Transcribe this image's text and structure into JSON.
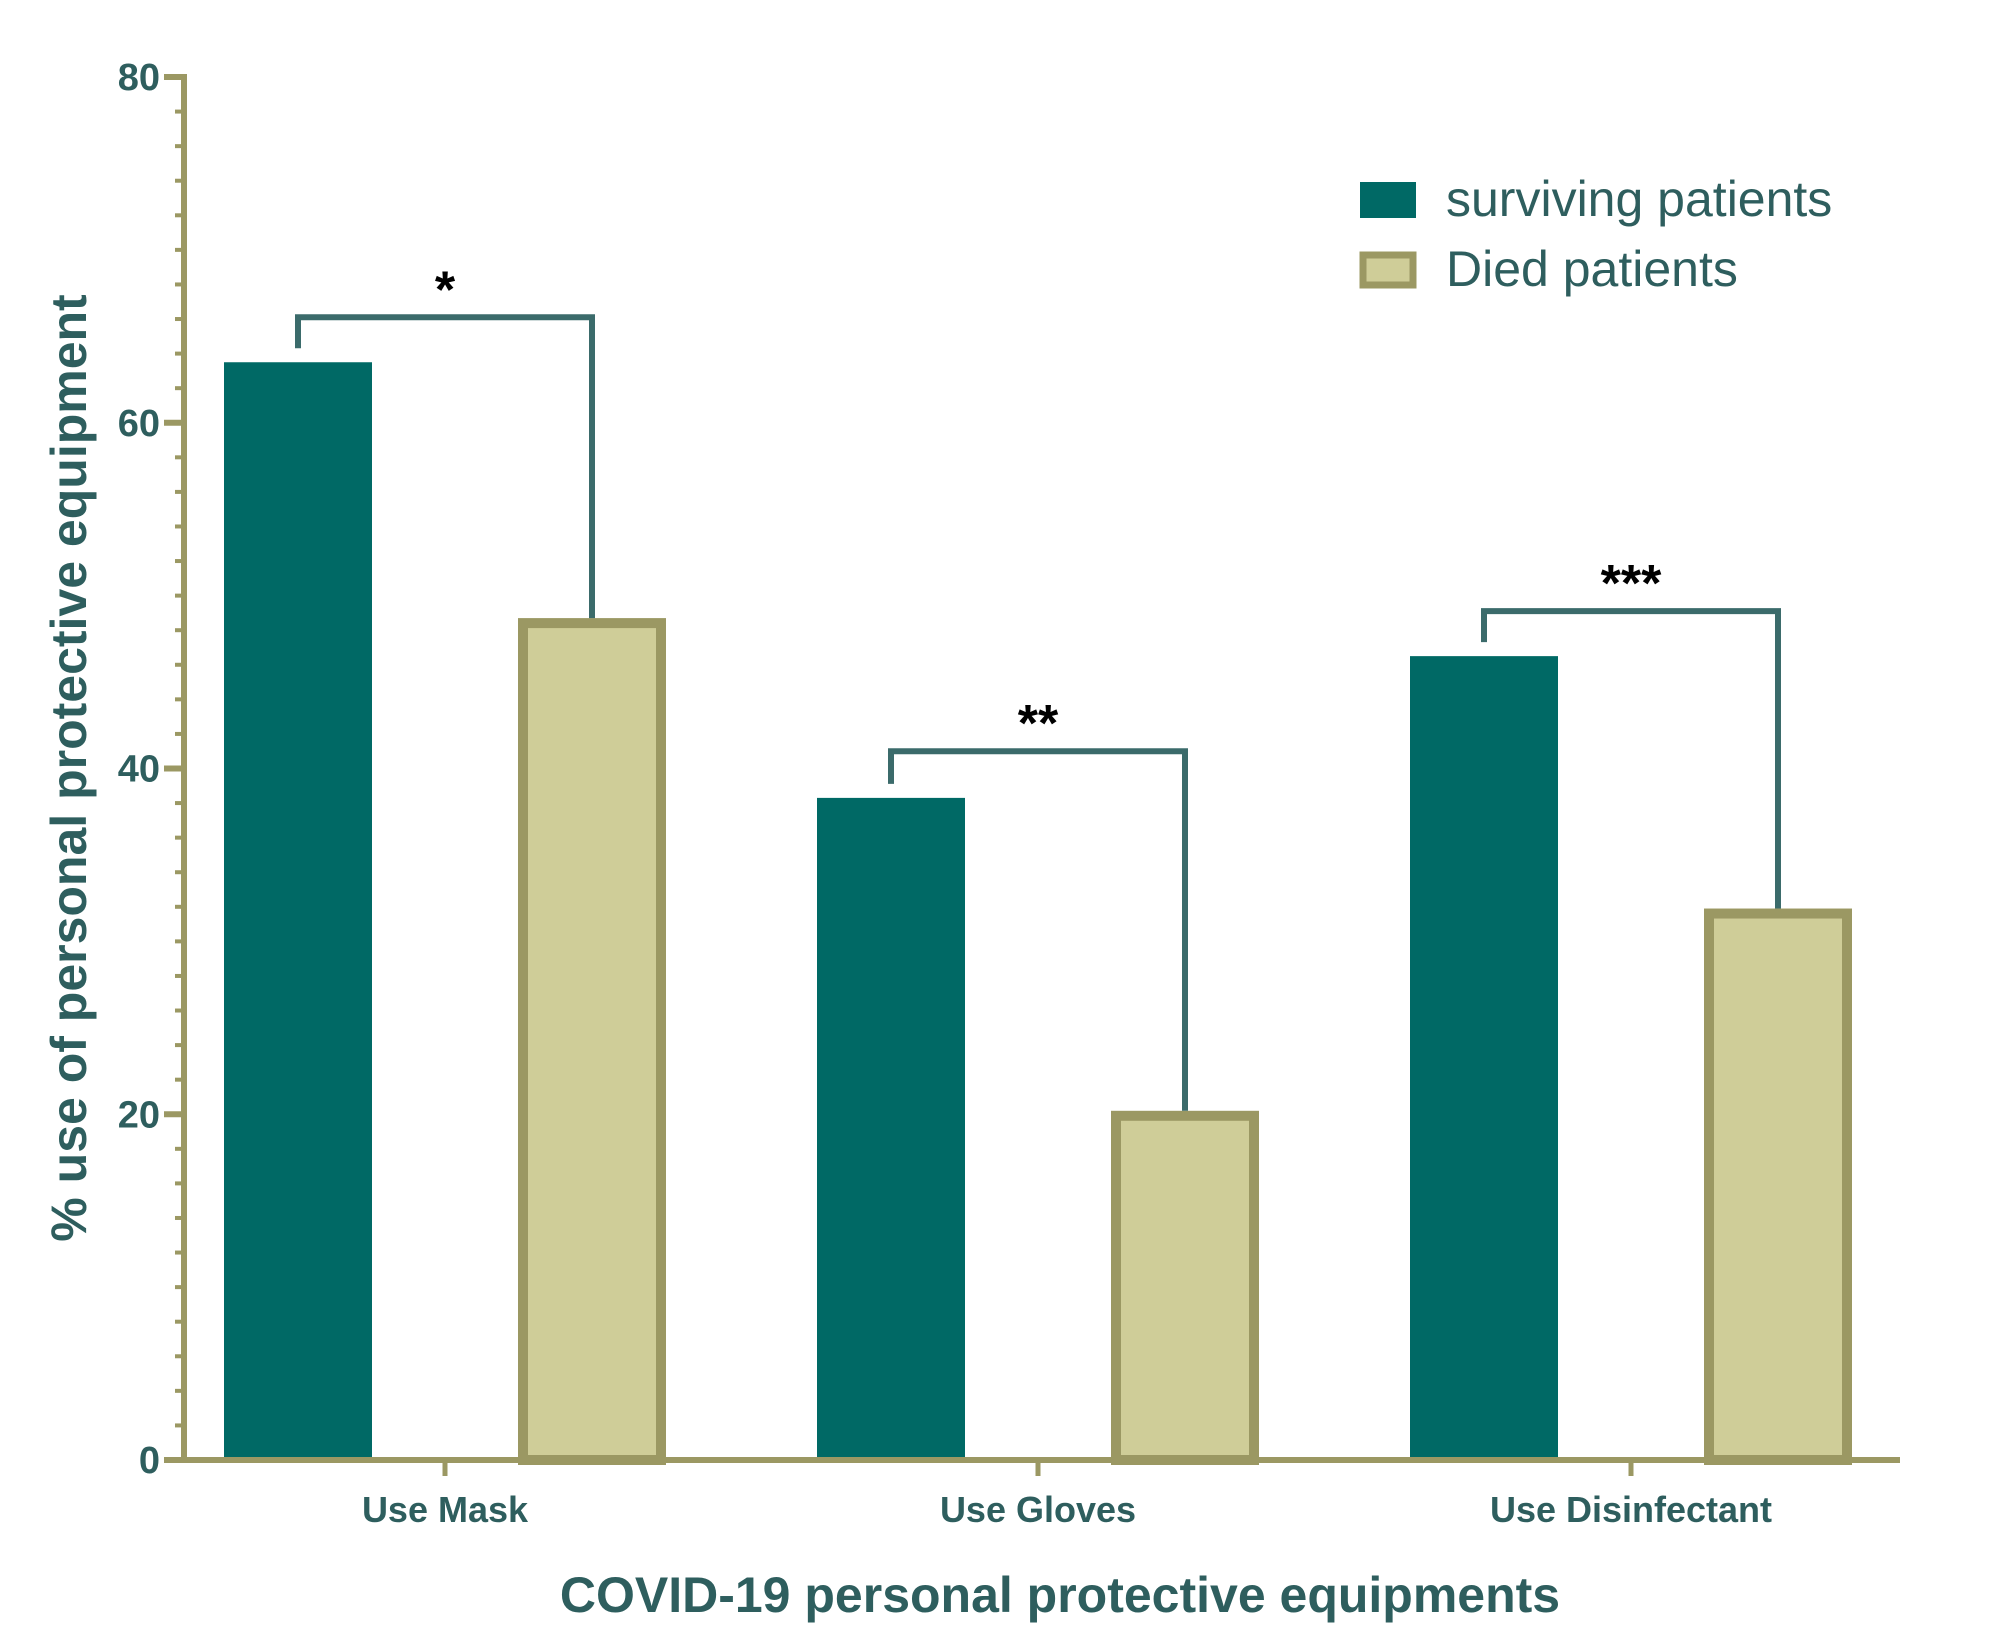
{
  "chart_data": {
    "type": "bar",
    "xlabel": "COVID-19 personal protective equipments",
    "ylabel": "% use of personal protective equipment",
    "categories": [
      "Use Mask",
      "Use Gloves",
      "Use Disinfectant"
    ],
    "series": [
      {
        "name": "surviving patients",
        "values": [
          63.5,
          38.3,
          46.5
        ],
        "color": "#006965"
      },
      {
        "name": "Died patients",
        "values": [
          48.7,
          20.2,
          31.9
        ],
        "color": "#cfcd98",
        "border_color": "#9b9863"
      }
    ],
    "ylim": [
      0,
      80
    ],
    "yticks": [
      "0",
      "20",
      "40",
      "60",
      "80"
    ],
    "minor_tick_step": 2,
    "significance": [
      {
        "category": "Use Mask",
        "label": "*",
        "bracket_top": 66.1
      },
      {
        "category": "Use Gloves",
        "label": "**",
        "bracket_top": 41.0
      },
      {
        "category": "Use Disinfectant",
        "label": "***",
        "bracket_top": 49.1
      }
    ],
    "legend_position": "top-right",
    "grid": false,
    "colors": {
      "axis": "#9b9863",
      "text": "#2e5e5e",
      "bracket": "#3b6b6b",
      "sig": "#000000"
    }
  }
}
